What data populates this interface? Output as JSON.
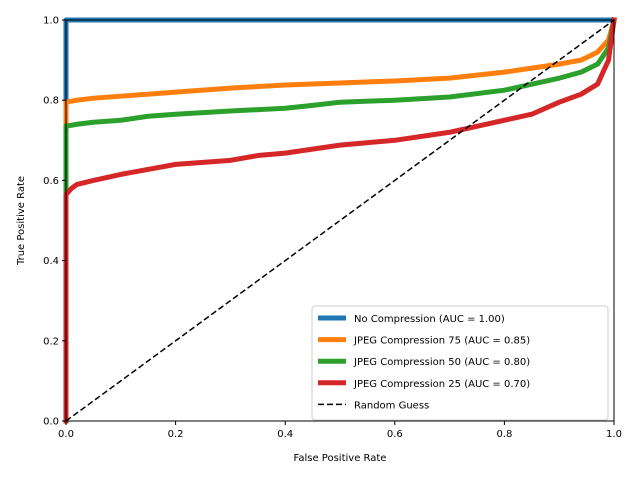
{
  "chart_data": {
    "type": "line",
    "title": "",
    "xlabel": "False Positive Rate",
    "ylabel": "True Positive Rate",
    "xlim": [
      0,
      1
    ],
    "ylim": [
      0,
      1
    ],
    "xticks": [
      "0.0",
      "0.2",
      "0.4",
      "0.6",
      "0.8",
      "1.0"
    ],
    "yticks": [
      "0.0",
      "0.2",
      "0.4",
      "0.6",
      "0.8",
      "1.0"
    ],
    "grid": false,
    "legend_position": "lower-right",
    "series": [
      {
        "name": "No Compression (AUC = 1.00)",
        "color": "#1f77b4",
        "x": [
          0,
          0,
          1
        ],
        "y": [
          0,
          1,
          1
        ]
      },
      {
        "name": "JPEG Compression 75 (AUC = 0.85)",
        "color": "#ff7f0e",
        "x": [
          0,
          0,
          0.02,
          0.05,
          0.1,
          0.2,
          0.3,
          0.4,
          0.5,
          0.6,
          0.7,
          0.8,
          0.85,
          0.9,
          0.94,
          0.97,
          0.99,
          1
        ],
        "y": [
          0,
          0.795,
          0.8,
          0.805,
          0.81,
          0.82,
          0.83,
          0.838,
          0.843,
          0.848,
          0.855,
          0.87,
          0.88,
          0.89,
          0.9,
          0.92,
          0.95,
          1
        ]
      },
      {
        "name": "JPEG Compression 50 (AUC = 0.80)",
        "color": "#2ca02c",
        "x": [
          0,
          0,
          0.02,
          0.05,
          0.1,
          0.15,
          0.2,
          0.3,
          0.4,
          0.45,
          0.5,
          0.6,
          0.7,
          0.8,
          0.85,
          0.9,
          0.94,
          0.97,
          0.99,
          1
        ],
        "y": [
          0,
          0.735,
          0.74,
          0.745,
          0.75,
          0.76,
          0.765,
          0.773,
          0.78,
          0.787,
          0.795,
          0.8,
          0.808,
          0.825,
          0.84,
          0.855,
          0.87,
          0.89,
          0.93,
          1
        ]
      },
      {
        "name": "JPEG Compression 25 (AUC = 0.70)",
        "color": "#d62728",
        "x": [
          0,
          0,
          0.01,
          0.02,
          0.05,
          0.1,
          0.2,
          0.3,
          0.35,
          0.4,
          0.5,
          0.6,
          0.7,
          0.75,
          0.8,
          0.85,
          0.9,
          0.94,
          0.97,
          0.99,
          1
        ],
        "y": [
          0,
          0.565,
          0.58,
          0.59,
          0.6,
          0.615,
          0.64,
          0.65,
          0.662,
          0.668,
          0.688,
          0.7,
          0.72,
          0.735,
          0.75,
          0.765,
          0.795,
          0.815,
          0.84,
          0.9,
          1
        ]
      }
    ],
    "reference_line": {
      "name": "Random Guess",
      "color": "#000000",
      "style": "dashed",
      "x": [
        0,
        1
      ],
      "y": [
        0,
        1
      ]
    }
  }
}
